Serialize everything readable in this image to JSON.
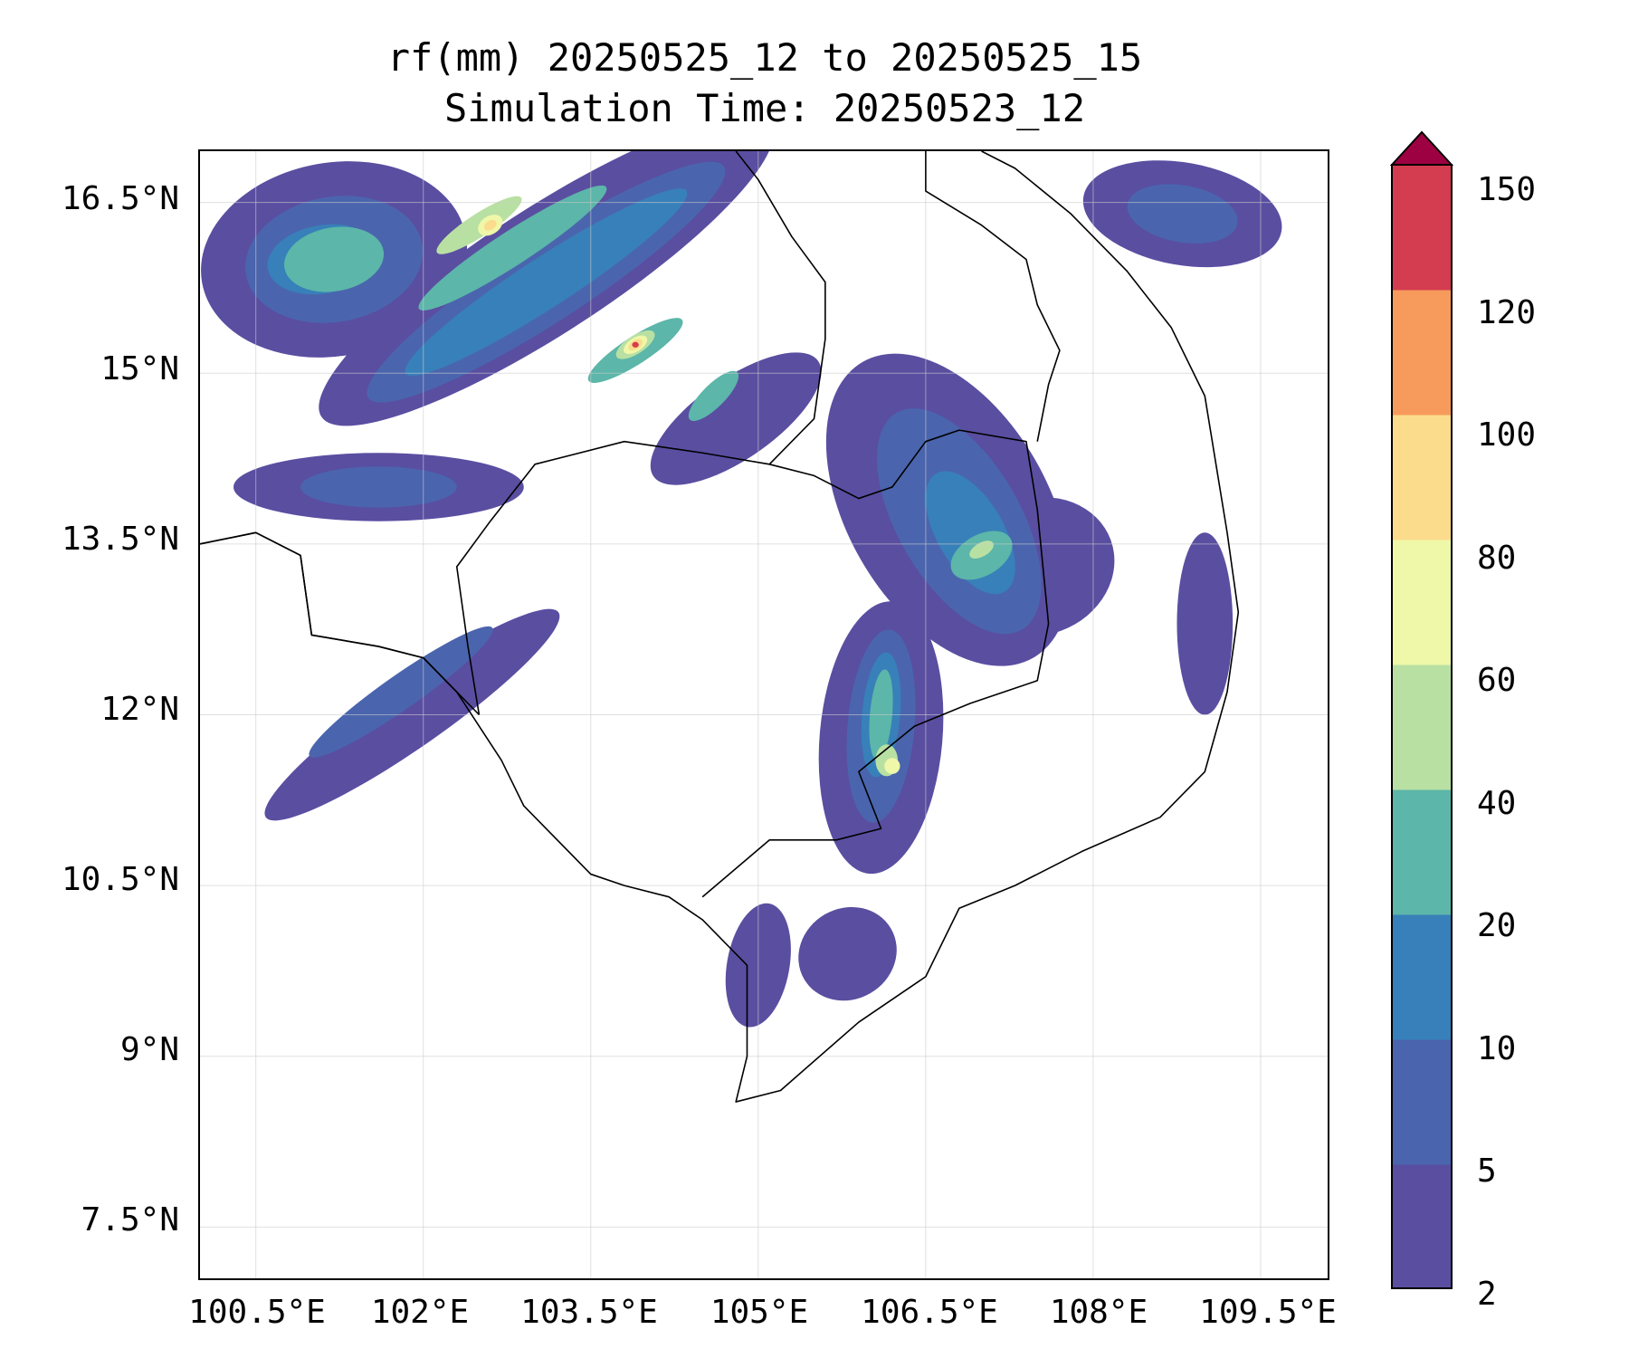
{
  "title": {
    "line1": "rf(mm) 20250525_12 to 20250525_15",
    "line2": "Simulation Time: 20250523_12"
  },
  "map": {
    "extent": {
      "lon_min": 100.0,
      "lon_max": 110.1,
      "lat_min": 7.05,
      "lat_max": 16.95
    },
    "lat_ticks": [
      {
        "value": 16.5,
        "label": "16.5°N"
      },
      {
        "value": 15,
        "label": "15°N"
      },
      {
        "value": 13.5,
        "label": "13.5°N"
      },
      {
        "value": 12,
        "label": "12°N"
      },
      {
        "value": 10.5,
        "label": "10.5°N"
      },
      {
        "value": 9,
        "label": "9°N"
      },
      {
        "value": 7.5,
        "label": "7.5°N"
      }
    ],
    "lon_ticks": [
      {
        "value": 100.5,
        "label": "100.5°E"
      },
      {
        "value": 102,
        "label": "102°E"
      },
      {
        "value": 103.5,
        "label": "103.5°E"
      },
      {
        "value": 105,
        "label": "105°E"
      },
      {
        "value": 106.5,
        "label": "106.5°E"
      },
      {
        "value": 108,
        "label": "108°E"
      },
      {
        "value": 109.5,
        "label": "109.5°E"
      }
    ],
    "gridlines": true
  },
  "colorbar": {
    "levels": [
      "2",
      "5",
      "10",
      "20",
      "40",
      "60",
      "80",
      "100",
      "120",
      "150"
    ],
    "colors": [
      "#5a4ea1",
      "#4a65ae",
      "#3880b9",
      "#5cb6a9",
      "#b9e0a3",
      "#eff7a8",
      "#fbdc8c",
      "#f79b5c",
      "#d43d4f"
    ],
    "extend_color": "#9e0142",
    "extend": "max"
  },
  "field": {
    "blobs": [
      {
        "lon": 101.2,
        "lat": 16.0,
        "rx": 1.2,
        "ry": 0.85,
        "angle": -10,
        "level": 0
      },
      {
        "lon": 103.1,
        "lat": 15.9,
        "rx": 2.4,
        "ry": 0.55,
        "angle": -33,
        "level": 0
      },
      {
        "lon": 104.8,
        "lat": 14.6,
        "rx": 0.9,
        "ry": 0.35,
        "angle": -35,
        "level": 0
      },
      {
        "lon": 101.6,
        "lat": 14.0,
        "rx": 1.3,
        "ry": 0.3,
        "angle": 0,
        "level": 0
      },
      {
        "lon": 106.7,
        "lat": 13.8,
        "rx": 0.9,
        "ry": 1.5,
        "angle": -30,
        "level": 0
      },
      {
        "lon": 107.5,
        "lat": 13.3,
        "rx": 0.7,
        "ry": 0.6,
        "angle": -20,
        "level": 0
      },
      {
        "lon": 106.1,
        "lat": 11.8,
        "rx": 0.55,
        "ry": 1.2,
        "angle": 5,
        "level": 0
      },
      {
        "lon": 101.9,
        "lat": 12.0,
        "rx": 1.6,
        "ry": 0.28,
        "angle": -35,
        "level": 0
      },
      {
        "lon": 105.0,
        "lat": 9.8,
        "rx": 0.28,
        "ry": 0.55,
        "angle": 10,
        "level": 0
      },
      {
        "lon": 105.8,
        "lat": 9.9,
        "rx": 0.45,
        "ry": 0.4,
        "angle": -30,
        "level": 0
      },
      {
        "lon": 108.8,
        "lat": 16.4,
        "rx": 0.9,
        "ry": 0.45,
        "angle": 10,
        "level": 0
      },
      {
        "lon": 109.0,
        "lat": 12.8,
        "rx": 0.25,
        "ry": 0.8,
        "angle": 0,
        "level": 0
      },
      {
        "lon": 101.2,
        "lat": 16.0,
        "rx": 0.8,
        "ry": 0.55,
        "angle": -10,
        "level": 1
      },
      {
        "lon": 103.1,
        "lat": 15.8,
        "rx": 1.9,
        "ry": 0.35,
        "angle": -33,
        "level": 1
      },
      {
        "lon": 101.6,
        "lat": 14.0,
        "rx": 0.7,
        "ry": 0.18,
        "angle": 0,
        "level": 1
      },
      {
        "lon": 106.8,
        "lat": 13.7,
        "rx": 0.55,
        "ry": 1.1,
        "angle": -30,
        "level": 1
      },
      {
        "lon": 106.1,
        "lat": 11.9,
        "rx": 0.3,
        "ry": 0.85,
        "angle": 5,
        "level": 1
      },
      {
        "lon": 101.8,
        "lat": 12.2,
        "rx": 1.0,
        "ry": 0.15,
        "angle": -35,
        "level": 1
      },
      {
        "lon": 108.8,
        "lat": 16.4,
        "rx": 0.5,
        "ry": 0.25,
        "angle": 10,
        "level": 1
      },
      {
        "lon": 101.1,
        "lat": 16.0,
        "rx": 0.5,
        "ry": 0.3,
        "angle": -10,
        "level": 2
      },
      {
        "lon": 103.1,
        "lat": 15.8,
        "rx": 1.5,
        "ry": 0.22,
        "angle": -33,
        "level": 2
      },
      {
        "lon": 106.9,
        "lat": 13.6,
        "rx": 0.3,
        "ry": 0.6,
        "angle": -30,
        "level": 2
      },
      {
        "lon": 106.1,
        "lat": 12.0,
        "rx": 0.17,
        "ry": 0.55,
        "angle": 5,
        "level": 2
      },
      {
        "lon": 101.2,
        "lat": 16.0,
        "rx": 0.45,
        "ry": 0.28,
        "angle": -10,
        "level": 3
      },
      {
        "lon": 102.8,
        "lat": 16.1,
        "rx": 1.0,
        "ry": 0.15,
        "angle": -33,
        "level": 3
      },
      {
        "lon": 103.9,
        "lat": 15.2,
        "rx": 0.5,
        "ry": 0.12,
        "angle": -33,
        "level": 3
      },
      {
        "lon": 104.6,
        "lat": 14.8,
        "rx": 0.3,
        "ry": 0.1,
        "angle": -45,
        "level": 3
      },
      {
        "lon": 107.0,
        "lat": 13.4,
        "rx": 0.3,
        "ry": 0.18,
        "angle": -30,
        "level": 3
      },
      {
        "lon": 106.1,
        "lat": 12.0,
        "rx": 0.1,
        "ry": 0.4,
        "angle": 5,
        "level": 3
      },
      {
        "lon": 102.5,
        "lat": 16.3,
        "rx": 0.45,
        "ry": 0.1,
        "angle": -33,
        "level": 4
      },
      {
        "lon": 103.9,
        "lat": 15.25,
        "rx": 0.2,
        "ry": 0.08,
        "angle": -33,
        "level": 4
      },
      {
        "lon": 107.0,
        "lat": 13.45,
        "rx": 0.12,
        "ry": 0.06,
        "angle": -30,
        "level": 4
      },
      {
        "lon": 106.15,
        "lat": 11.6,
        "rx": 0.1,
        "ry": 0.14,
        "angle": 0,
        "level": 4
      },
      {
        "lon": 102.6,
        "lat": 16.3,
        "rx": 0.12,
        "ry": 0.08,
        "angle": -33,
        "level": 5
      },
      {
        "lon": 103.9,
        "lat": 15.25,
        "rx": 0.12,
        "ry": 0.06,
        "angle": -33,
        "level": 5
      },
      {
        "lon": 106.2,
        "lat": 11.55,
        "rx": 0.07,
        "ry": 0.07,
        "angle": 0,
        "level": 5
      },
      {
        "lon": 102.6,
        "lat": 16.3,
        "rx": 0.06,
        "ry": 0.04,
        "angle": -33,
        "level": 6
      },
      {
        "lon": 103.9,
        "lat": 15.25,
        "rx": 0.07,
        "ry": 0.04,
        "angle": -33,
        "level": 6
      },
      {
        "lon": 103.9,
        "lat": 15.25,
        "rx": 0.03,
        "ry": 0.025,
        "angle": 0,
        "level": 8
      }
    ],
    "coastline": [
      [
        100.0,
        13.5
      ],
      [
        100.5,
        13.6
      ],
      [
        100.9,
        13.4
      ],
      [
        101.0,
        12.7
      ],
      [
        101.6,
        12.6
      ],
      [
        102.0,
        12.5
      ],
      [
        102.3,
        12.2
      ],
      [
        102.7,
        11.6
      ],
      [
        102.9,
        11.2
      ],
      [
        103.2,
        10.9
      ],
      [
        103.5,
        10.6
      ],
      [
        103.8,
        10.5
      ],
      [
        104.2,
        10.4
      ],
      [
        104.5,
        10.2
      ],
      [
        104.9,
        9.8
      ],
      [
        104.9,
        9.0
      ],
      [
        104.8,
        8.6
      ],
      [
        105.2,
        8.7
      ],
      [
        105.9,
        9.3
      ],
      [
        106.5,
        9.7
      ],
      [
        106.8,
        10.3
      ],
      [
        107.3,
        10.5
      ],
      [
        107.9,
        10.8
      ],
      [
        108.6,
        11.1
      ],
      [
        109.0,
        11.5
      ],
      [
        109.2,
        12.2
      ],
      [
        109.3,
        12.9
      ],
      [
        109.2,
        13.6
      ],
      [
        109.1,
        14.2
      ],
      [
        109.0,
        14.8
      ],
      [
        108.7,
        15.4
      ],
      [
        108.3,
        15.9
      ],
      [
        107.8,
        16.4
      ],
      [
        107.3,
        16.8
      ],
      [
        107.0,
        16.95
      ]
    ],
    "borders": [
      [
        [
          100.0,
          13.5
        ],
        [
          100.5,
          13.6
        ],
        [
          100.9,
          13.4
        ],
        [
          101.0,
          12.7
        ],
        [
          101.6,
          12.6
        ],
        [
          102.0,
          12.5
        ],
        [
          102.3,
          12.2
        ],
        [
          102.5,
          12.0
        ]
      ],
      [
        [
          102.5,
          12.0
        ],
        [
          102.4,
          12.6
        ],
        [
          102.3,
          13.3
        ],
        [
          102.6,
          13.7
        ],
        [
          103.0,
          14.2
        ],
        [
          103.8,
          14.4
        ],
        [
          104.5,
          14.3
        ],
        [
          105.1,
          14.2
        ],
        [
          105.5,
          14.1
        ],
        [
          105.9,
          13.9
        ],
        [
          106.2,
          14.0
        ],
        [
          106.5,
          14.4
        ],
        [
          106.8,
          14.5
        ],
        [
          107.4,
          14.4
        ],
        [
          107.5,
          13.8
        ],
        [
          107.6,
          12.8
        ],
        [
          107.5,
          12.3
        ],
        [
          106.9,
          12.1
        ],
        [
          106.4,
          11.9
        ],
        [
          105.9,
          11.5
        ],
        [
          106.1,
          11.0
        ],
        [
          105.7,
          10.9
        ],
        [
          105.1,
          10.9
        ],
        [
          104.5,
          10.4
        ]
      ],
      [
        [
          105.1,
          14.2
        ],
        [
          105.5,
          14.6
        ],
        [
          105.6,
          15.3
        ],
        [
          105.6,
          15.8
        ],
        [
          105.3,
          16.2
        ],
        [
          105.0,
          16.7
        ],
        [
          104.8,
          16.95
        ]
      ],
      [
        [
          106.5,
          16.95
        ],
        [
          106.5,
          16.6
        ],
        [
          107.0,
          16.3
        ],
        [
          107.4,
          16.0
        ],
        [
          107.5,
          15.6
        ],
        [
          107.7,
          15.2
        ],
        [
          107.6,
          14.9
        ],
        [
          107.5,
          14.4
        ]
      ]
    ]
  }
}
